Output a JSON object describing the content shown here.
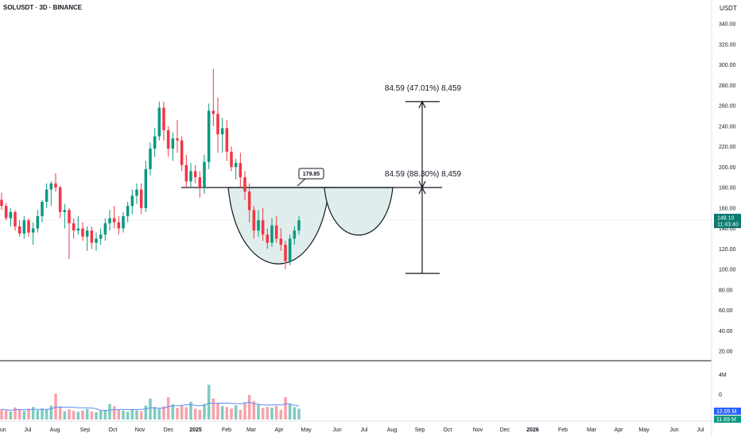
{
  "header": {
    "title": "SOLUSDT · 3D · BINANCE",
    "currency": "USDT"
  },
  "colors": {
    "up": "#089981",
    "down": "#f23645",
    "vol_up": "#7fcac0",
    "vol_down": "#f7a2a9",
    "ma": "#5b8ff5",
    "shape_fill": "#dfeeec",
    "price_badge": "#0b7a6e",
    "vol_badge": "#2962ff"
  },
  "chart_data": {
    "type": "candlestick",
    "y_axis": {
      "ticks": [
        20,
        40,
        60,
        80,
        100,
        120,
        140,
        160,
        180,
        200,
        220,
        240,
        260,
        280,
        300,
        320,
        340
      ],
      "tick_labels": [
        "20.00",
        "40.00",
        "60.00",
        "80.00",
        "100.00",
        "120.00",
        "140.00",
        "160.00",
        "180.00",
        "200.00",
        "220.00",
        "240.00",
        "260.00",
        "280.00",
        "300.00",
        "320.00",
        "340.00"
      ],
      "ylim": [
        10,
        350
      ]
    },
    "x_axis": {
      "labels": [
        "Jun",
        "Jul",
        "Aug",
        "Sep",
        "Oct",
        "Nov",
        "Dec",
        "2025",
        "Feb",
        "Mar",
        "Apr",
        "May",
        "Jun",
        "Jul",
        "Aug",
        "Sep",
        "Oct",
        "Nov",
        "Dec",
        "2026",
        "Feb",
        "Mar",
        "Apr",
        "May",
        "Jun",
        "Jul"
      ],
      "bold_labels": [
        "2025",
        "2026"
      ]
    },
    "ohlc": [
      [
        168,
        175,
        158,
        162
      ],
      [
        162,
        165,
        148,
        150
      ],
      [
        150,
        160,
        142,
        156
      ],
      [
        156,
        158,
        138,
        142
      ],
      [
        142,
        148,
        132,
        135
      ],
      [
        135,
        152,
        130,
        148
      ],
      [
        148,
        150,
        132,
        136
      ],
      [
        136,
        146,
        124,
        140
      ],
      [
        140,
        158,
        136,
        152
      ],
      [
        152,
        168,
        146,
        166
      ],
      [
        166,
        184,
        160,
        178
      ],
      [
        178,
        186,
        162,
        184
      ],
      [
        184,
        194,
        176,
        180
      ],
      [
        180,
        182,
        150,
        156
      ],
      [
        156,
        164,
        140,
        158
      ],
      [
        158,
        160,
        110,
        145
      ],
      [
        145,
        150,
        130,
        138
      ],
      [
        138,
        152,
        134,
        140
      ],
      [
        140,
        146,
        128,
        132
      ],
      [
        132,
        142,
        118,
        138
      ],
      [
        138,
        142,
        120,
        126
      ],
      [
        126,
        136,
        118,
        130
      ],
      [
        130,
        140,
        124,
        134
      ],
      [
        134,
        150,
        128,
        145
      ],
      [
        145,
        158,
        138,
        150
      ],
      [
        150,
        162,
        140,
        146
      ],
      [
        146,
        152,
        134,
        140
      ],
      [
        140,
        156,
        136,
        152
      ],
      [
        152,
        166,
        146,
        162
      ],
      [
        162,
        178,
        154,
        172
      ],
      [
        172,
        184,
        164,
        178
      ],
      [
        178,
        184,
        154,
        160
      ],
      [
        160,
        206,
        156,
        198
      ],
      [
        198,
        224,
        192,
        218
      ],
      [
        218,
        238,
        210,
        230
      ],
      [
        230,
        264,
        226,
        258
      ],
      [
        258,
        264,
        226,
        236
      ],
      [
        236,
        240,
        210,
        218
      ],
      [
        218,
        234,
        206,
        228
      ],
      [
        228,
        246,
        214,
        226
      ],
      [
        226,
        230,
        196,
        202
      ],
      [
        202,
        212,
        180,
        186
      ],
      [
        186,
        204,
        180,
        196
      ],
      [
        196,
        202,
        184,
        190
      ],
      [
        190,
        196,
        170,
        180
      ],
      [
        180,
        212,
        174,
        205
      ],
      [
        205,
        262,
        198,
        255
      ],
      [
        255,
        296,
        240,
        252
      ],
      [
        252,
        268,
        214,
        232
      ],
      [
        232,
        248,
        214,
        238
      ],
      [
        238,
        246,
        206,
        215
      ],
      [
        215,
        220,
        196,
        200
      ],
      [
        200,
        208,
        188,
        204
      ],
      [
        204,
        214,
        180,
        190
      ],
      [
        190,
        196,
        168,
        176
      ],
      [
        176,
        184,
        146,
        158
      ],
      [
        158,
        162,
        130,
        138
      ],
      [
        138,
        158,
        132,
        148
      ],
      [
        148,
        160,
        128,
        134
      ],
      [
        134,
        140,
        120,
        126
      ],
      [
        126,
        150,
        122,
        143
      ],
      [
        143,
        152,
        126,
        130
      ],
      [
        130,
        140,
        118,
        124
      ],
      [
        124,
        128,
        100,
        108
      ],
      [
        108,
        134,
        104,
        130
      ],
      [
        130,
        142,
        124,
        138
      ],
      [
        138,
        152,
        134,
        148
      ]
    ],
    "volume": [
      5.2,
      4.6,
      4.0,
      6.1,
      5.0,
      4.3,
      5.5,
      6.3,
      4.7,
      5.6,
      5.0,
      7.0,
      13.0,
      6.4,
      4.2,
      5.1,
      4.4,
      3.9,
      4.6,
      5.3,
      4.0,
      3.6,
      4.4,
      4.9,
      7.8,
      6.7,
      5.0,
      4.5,
      3.9,
      5.2,
      4.6,
      4.1,
      7.0,
      10.5,
      6.3,
      5.4,
      6.6,
      11.2,
      7.7,
      5.8,
      6.9,
      6.2,
      8.9,
      5.5,
      4.8,
      7.8,
      17.5,
      10.6,
      8.0,
      6.8,
      6.3,
      5.5,
      7.2,
      4.9,
      8.6,
      12.4,
      9.2,
      7.4,
      5.8,
      6.3,
      6.0,
      6.9,
      4.9,
      11.3,
      7.8,
      6.2,
      5.5
    ],
    "volume_axis": {
      "tick_labels": [
        "4M",
        "0"
      ]
    },
    "current_price": {
      "value": 148.1,
      "label": "148.10",
      "countdown": "11:43:40"
    },
    "volume_values": {
      "label_a": "12.05 M",
      "label_b": "11.69 M"
    },
    "annotations": {
      "neckline_price": 180,
      "neckline_label": "179.85",
      "cup_bottom": 96,
      "target_price": 264,
      "target_label": "84.59 (47.01%) 8,459",
      "lower_label": "84.59 (88.30%) 8,459"
    }
  }
}
